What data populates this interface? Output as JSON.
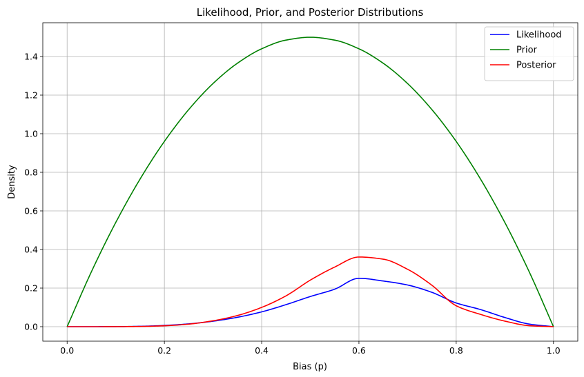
{
  "chart_data": {
    "type": "line",
    "title": "Likelihood, Prior, and Posterior Distributions",
    "xlabel": "Bias (p)",
    "ylabel": "Density",
    "xlim": [
      -0.05,
      1.05
    ],
    "ylim": [
      -0.075,
      1.575
    ],
    "grid": true,
    "legend_position": "top-right",
    "x_ticks": [
      0.0,
      0.2,
      0.4,
      0.6,
      0.8,
      1.0
    ],
    "x_tick_labels": [
      "0.0",
      "0.2",
      "0.4",
      "0.6",
      "0.8",
      "1.0"
    ],
    "y_ticks": [
      0.0,
      0.2,
      0.4,
      0.6,
      0.8,
      1.0,
      1.2,
      1.4
    ],
    "y_tick_labels": [
      "0.0",
      "0.2",
      "0.4",
      "0.6",
      "0.8",
      "1.0",
      "1.2",
      "1.4"
    ],
    "x": [
      0.0,
      0.05,
      0.1,
      0.15,
      0.2,
      0.25,
      0.3,
      0.35,
      0.4,
      0.45,
      0.5,
      0.55,
      0.6,
      0.65,
      0.7,
      0.75,
      0.8,
      0.85,
      0.9,
      0.95,
      1.0
    ],
    "series": [
      {
        "name": "Likelihood",
        "color": "#0000ff",
        "values": [
          0.0,
          0.0,
          0.0004,
          0.002,
          0.0064,
          0.0146,
          0.0284,
          0.0487,
          0.0768,
          0.1142,
          0.1563,
          0.1942,
          0.2508,
          0.2367,
          0.216,
          0.178,
          0.1229,
          0.0888,
          0.0477,
          0.0136,
          0.0
        ]
      },
      {
        "name": "Prior",
        "color": "#008000",
        "values": [
          0.0,
          0.285,
          0.54,
          0.765,
          0.96,
          1.125,
          1.26,
          1.365,
          1.44,
          1.485,
          1.5,
          1.485,
          1.44,
          1.365,
          1.26,
          1.125,
          0.96,
          0.765,
          0.54,
          0.285,
          0.0
        ]
      },
      {
        "name": "Posterior",
        "color": "#ff0000",
        "values": [
          0.0,
          0.0,
          0.0002,
          0.0012,
          0.0047,
          0.0132,
          0.0306,
          0.0578,
          0.1,
          0.1597,
          0.2412,
          0.3088,
          0.3611,
          0.3499,
          0.2975,
          0.2148,
          0.1085,
          0.0637,
          0.0289,
          0.0052,
          0.0
        ]
      }
    ]
  }
}
